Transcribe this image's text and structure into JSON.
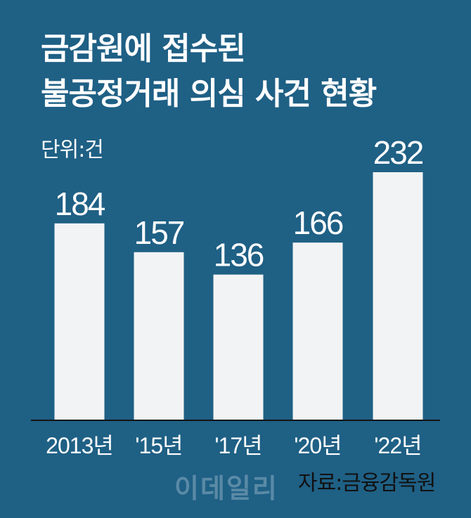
{
  "title_lines": [
    "금감원에 접수된",
    "불공정거래 의심 사건 현황"
  ],
  "unit_label": "단위:건",
  "source_label": "자료:금융감독원",
  "watermark": "이데일리",
  "colors": {
    "background": "#1f6085",
    "bar": "#f2f3f4",
    "baseline": "#141414",
    "text": "#ffffff"
  },
  "chart_data": {
    "type": "bar",
    "categories": [
      "2013년",
      "'15년",
      "'17년",
      "'20년",
      "'22년"
    ],
    "values": [
      184,
      157,
      136,
      166,
      232
    ],
    "ylim": [
      0,
      250
    ],
    "grid": false,
    "xlabel": "",
    "ylabel": ""
  }
}
